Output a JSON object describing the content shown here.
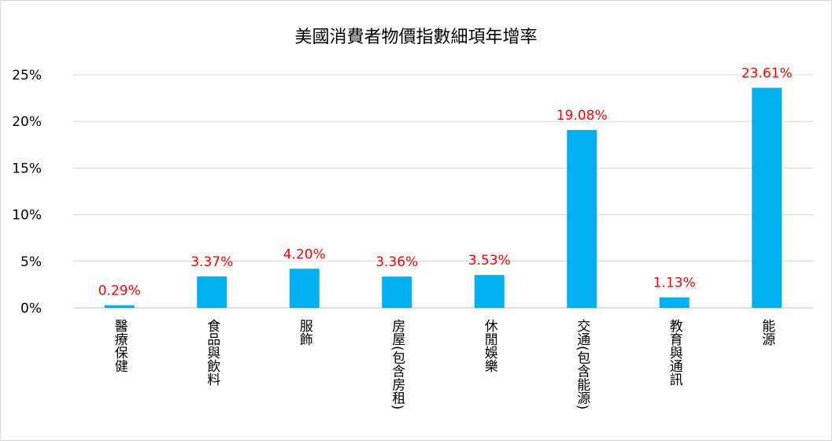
{
  "chart_data": {
    "type": "bar",
    "title": "美國消費者物價指數細項年增率",
    "categories": [
      "醫療保健",
      "食品與飲料",
      "服飾",
      "房屋(包含房租)",
      "休閒娛樂",
      "交通(包含能源)",
      "教育與通訊",
      "能源"
    ],
    "values": [
      0.29,
      3.37,
      4.2,
      3.36,
      3.53,
      19.08,
      1.13,
      23.61
    ],
    "data_labels": [
      "0.29%",
      "3.37%",
      "4.20%",
      "3.36%",
      "3.53%",
      "19.08%",
      "1.13%",
      "23.61%"
    ],
    "y_ticks": [
      "0%",
      "5%",
      "10%",
      "15%",
      "20%",
      "25%"
    ],
    "ylim": [
      0,
      25
    ],
    "grid": true,
    "xlabel": "",
    "ylabel": "",
    "colors": {
      "bar": "#00b0f0",
      "label": "#ff0000"
    }
  }
}
